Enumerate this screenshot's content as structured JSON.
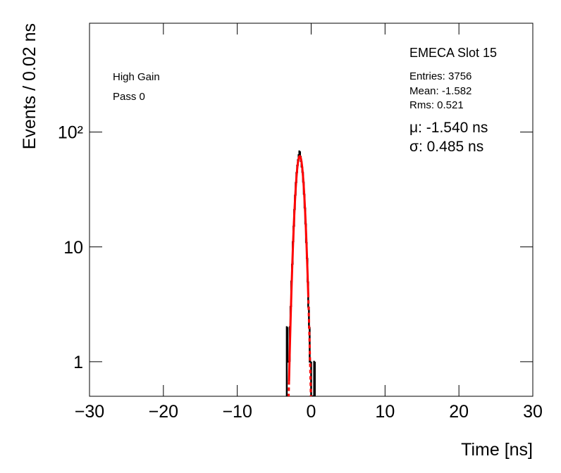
{
  "chart_data": {
    "type": "histogram",
    "xlabel": "Time [ns]",
    "ylabel": "Events / 0.02 ns",
    "bins": [
      -3.3,
      -3.2,
      -3.1,
      -3.0,
      -2.9,
      -2.8,
      -2.7,
      -2.6,
      -2.5,
      -2.4,
      -2.3,
      -2.2,
      -2.1,
      -2.0,
      -1.9,
      -1.8,
      -1.7,
      -1.6,
      -1.5,
      -1.4,
      -1.3,
      -1.2,
      -1.1,
      -1.0,
      -0.9,
      -0.8,
      -0.7,
      -0.6,
      -0.5,
      -0.4,
      -0.3,
      -0.2,
      -0.1,
      0.0,
      0.1,
      0.2,
      0.3,
      0.4,
      0.5,
      0.6
    ],
    "values": [
      2,
      1,
      1,
      1,
      2,
      3,
      5,
      7,
      11,
      15,
      21,
      28,
      36,
      44,
      51,
      57,
      63,
      68,
      62,
      56,
      50,
      45,
      37,
      29,
      22,
      16,
      11,
      8,
      5,
      3,
      2,
      1,
      1,
      0,
      0,
      0,
      0,
      1,
      0
    ],
    "color": "#000000",
    "fit": {
      "mu": -1.54,
      "sigma": 0.485,
      "amplitude": 61.8,
      "range": [
        -3.0,
        -0.4
      ],
      "color": "#ff0000"
    },
    "xlim": [
      -30,
      30
    ],
    "xticks": [
      {
        "value": -30,
        "label": "−30"
      },
      {
        "value": -20,
        "label": "−20"
      },
      {
        "value": -10,
        "label": "−10"
      },
      0,
      10,
      20,
      30
    ],
    "ylim": [
      0.5,
      887
    ],
    "yticks": [
      1,
      10,
      {
        "value": 100,
        "label": "10²"
      }
    ],
    "log_y": true,
    "annotations": {
      "title": "EMECA Slot 15",
      "entries": "Entries: 3756",
      "mean": "Mean: -1.582",
      "rms": "Rms: 0.521",
      "mu": "μ: -1.540 ns",
      "sigma": "σ: 0.485 ns",
      "gain": "High Gain",
      "pass": "Pass 0"
    }
  }
}
